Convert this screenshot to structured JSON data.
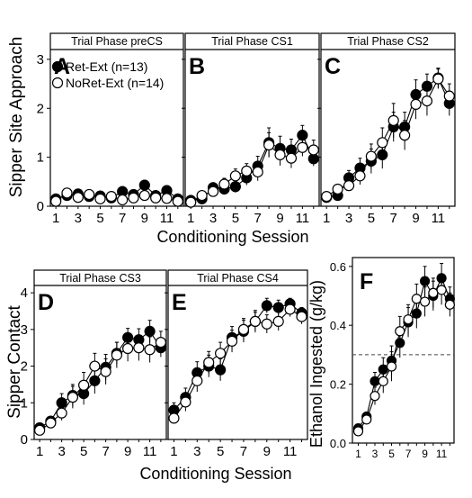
{
  "figure": {
    "row1_ylabel": "Sipper Site Approach",
    "row1_xlabel": "Conditioning Session",
    "row2_left_ylabel": "Sipper Contact",
    "row2_left_xlabel": "Conditioning Session",
    "ethanol_ylabel": "Ethanol Ingested (g/kg)"
  },
  "legend": {
    "ret": "Ret-Ext (n=13)",
    "noret": "NoRet-Ext (n=14)"
  },
  "colors": {
    "ret": "#000000",
    "noret": "#ffffff",
    "axis": "#000000",
    "strip": "#ffffff"
  },
  "chart_data": [
    {
      "id": "A",
      "type": "line",
      "letter": "A",
      "strip": "Trial Phase preCS",
      "ylim": [
        0,
        3.2
      ],
      "yticks": [
        0,
        1,
        2,
        3
      ],
      "xticks": [
        1,
        3,
        5,
        7,
        9,
        11
      ],
      "show_y_ticklabels": true,
      "legend": true,
      "x": [
        1,
        2,
        3,
        4,
        5,
        6,
        7,
        8,
        9,
        10,
        11,
        12
      ],
      "series": [
        {
          "name": "Ret-Ext (n=13)",
          "values": [
            0.15,
            0.22,
            0.25,
            0.2,
            0.21,
            0.17,
            0.3,
            0.24,
            0.43,
            0.22,
            0.32,
            0.15
          ],
          "err": [
            0.05,
            0.06,
            0.06,
            0.06,
            0.06,
            0.06,
            0.1,
            0.08,
            0.1,
            0.07,
            0.1,
            0.06
          ]
        },
        {
          "name": "NoRet-Ext (n=14)",
          "values": [
            0.1,
            0.27,
            0.18,
            0.24,
            0.15,
            0.2,
            0.13,
            0.17,
            0.22,
            0.17,
            0.16,
            0.1
          ],
          "err": [
            0.04,
            0.05,
            0.05,
            0.05,
            0.05,
            0.06,
            0.05,
            0.06,
            0.07,
            0.06,
            0.06,
            0.04
          ]
        }
      ]
    },
    {
      "id": "B",
      "type": "line",
      "letter": "B",
      "strip": "Trial Phase CS1",
      "ylim": [
        0,
        3.2
      ],
      "yticks": [
        0,
        1,
        2,
        3
      ],
      "xticks": [
        1,
        3,
        5,
        7,
        9,
        11
      ],
      "show_y_ticklabels": false,
      "legend": false,
      "x": [
        1,
        2,
        3,
        4,
        5,
        6,
        7,
        8,
        9,
        10,
        11,
        12
      ],
      "series": [
        {
          "name": "Ret-Ext (n=13)",
          "values": [
            0.12,
            0.15,
            0.38,
            0.35,
            0.4,
            0.58,
            0.82,
            1.3,
            1.18,
            1.15,
            1.45,
            0.97
          ],
          "err": [
            0.05,
            0.06,
            0.1,
            0.1,
            0.12,
            0.15,
            0.2,
            0.3,
            0.25,
            0.22,
            0.2,
            0.15
          ]
        },
        {
          "name": "NoRet-Ext (n=14)",
          "values": [
            0.08,
            0.22,
            0.3,
            0.45,
            0.62,
            0.72,
            0.7,
            1.25,
            1.05,
            0.98,
            1.2,
            1.15
          ],
          "err": [
            0.04,
            0.06,
            0.1,
            0.12,
            0.14,
            0.15,
            0.18,
            0.25,
            0.22,
            0.2,
            0.18,
            0.2
          ]
        }
      ]
    },
    {
      "id": "C",
      "type": "line",
      "letter": "C",
      "strip": "Trial Phase CS2",
      "ylim": [
        0,
        3.2
      ],
      "yticks": [
        0,
        1,
        2,
        3
      ],
      "xticks": [
        1,
        3,
        5,
        7,
        9,
        11
      ],
      "show_y_ticklabels": false,
      "legend": false,
      "x": [
        1,
        2,
        3,
        4,
        5,
        6,
        7,
        8,
        9,
        10,
        11,
        12
      ],
      "series": [
        {
          "name": "Ret-Ext (n=13)",
          "values": [
            0.18,
            0.22,
            0.58,
            0.78,
            0.92,
            1.05,
            1.62,
            1.62,
            2.28,
            2.45,
            2.62,
            2.1
          ],
          "err": [
            0.06,
            0.08,
            0.15,
            0.2,
            0.25,
            0.28,
            0.3,
            0.3,
            0.3,
            0.25,
            0.2,
            0.25
          ]
        },
        {
          "name": "NoRet-Ext (n=14)",
          "values": [
            0.2,
            0.35,
            0.42,
            0.62,
            1.02,
            1.3,
            1.75,
            1.45,
            2.08,
            2.15,
            2.6,
            2.25
          ],
          "err": [
            0.06,
            0.08,
            0.1,
            0.18,
            0.25,
            0.3,
            0.35,
            0.3,
            0.3,
            0.3,
            0.2,
            0.25
          ]
        }
      ]
    },
    {
      "id": "D",
      "type": "line",
      "letter": "D",
      "strip": "Trial Phase CS3",
      "ylim": [
        0,
        4.2
      ],
      "yticks": [
        0,
        1,
        2,
        3,
        4
      ],
      "xticks": [
        1,
        3,
        5,
        7,
        9,
        11
      ],
      "show_y_ticklabels": true,
      "legend": false,
      "x": [
        1,
        2,
        3,
        4,
        5,
        6,
        7,
        8,
        9,
        10,
        11,
        12
      ],
      "series": [
        {
          "name": "Ret-Ext (n=13)",
          "values": [
            0.32,
            0.5,
            1.0,
            1.2,
            1.25,
            1.6,
            1.97,
            2.35,
            2.78,
            2.72,
            2.95,
            2.5
          ],
          "err": [
            0.08,
            0.12,
            0.25,
            0.3,
            0.3,
            0.35,
            0.35,
            0.3,
            0.25,
            0.3,
            0.3,
            0.25
          ]
        },
        {
          "name": "NoRet-Ext (n=14)",
          "values": [
            0.25,
            0.45,
            0.72,
            1.15,
            1.48,
            2.0,
            1.85,
            2.3,
            2.48,
            2.5,
            2.45,
            2.65
          ],
          "err": [
            0.06,
            0.1,
            0.2,
            0.3,
            0.35,
            0.35,
            0.35,
            0.35,
            0.35,
            0.35,
            0.35,
            0.3
          ]
        }
      ]
    },
    {
      "id": "E",
      "type": "line",
      "letter": "E",
      "strip": "Trial Phase CS4",
      "ylim": [
        0,
        4.2
      ],
      "yticks": [
        0,
        1,
        2,
        3,
        4
      ],
      "xticks": [
        1,
        3,
        5,
        7,
        9,
        11
      ],
      "show_y_ticklabels": false,
      "legend": false,
      "x": [
        1,
        2,
        3,
        4,
        5,
        6,
        7,
        8,
        9,
        10,
        11,
        12
      ],
      "series": [
        {
          "name": "Ret-Ext (n=13)",
          "values": [
            0.8,
            1.15,
            1.82,
            2.0,
            1.9,
            2.78,
            2.95,
            3.22,
            3.65,
            3.6,
            3.7,
            3.45
          ],
          "err": [
            0.2,
            0.25,
            0.3,
            0.3,
            0.3,
            0.3,
            0.3,
            0.25,
            0.2,
            0.2,
            0.15,
            0.15
          ]
        },
        {
          "name": "NoRet-Ext (n=14)",
          "values": [
            0.58,
            1.02,
            1.6,
            2.1,
            2.35,
            2.68,
            3.0,
            3.22,
            3.15,
            3.22,
            3.55,
            3.35
          ],
          "err": [
            0.15,
            0.25,
            0.3,
            0.3,
            0.3,
            0.3,
            0.3,
            0.3,
            0.25,
            0.25,
            0.2,
            0.2
          ]
        }
      ]
    },
    {
      "id": "F",
      "type": "line",
      "letter": "F",
      "strip": "",
      "ylim": [
        0,
        0.63
      ],
      "yticks": [
        0.0,
        0.2,
        0.4,
        0.6
      ],
      "ytick_labels": [
        "0.0",
        "0.2",
        "0.4",
        "0.6"
      ],
      "xticks": [
        1,
        3,
        5,
        7,
        9,
        11
      ],
      "show_y_ticklabels": true,
      "legend": false,
      "reference_line": 0.3,
      "x": [
        1,
        2,
        3,
        4,
        5,
        6,
        7,
        8,
        9,
        10,
        11,
        12
      ],
      "series": [
        {
          "name": "Ret-Ext (n=13)",
          "values": [
            0.05,
            0.09,
            0.21,
            0.25,
            0.28,
            0.34,
            0.41,
            0.44,
            0.55,
            0.5,
            0.56,
            0.49
          ],
          "err": [
            0.01,
            0.015,
            0.03,
            0.04,
            0.05,
            0.05,
            0.05,
            0.05,
            0.05,
            0.05,
            0.05,
            0.04
          ]
        },
        {
          "name": "NoRet-Ext (n=14)",
          "values": [
            0.04,
            0.08,
            0.16,
            0.21,
            0.26,
            0.38,
            0.42,
            0.49,
            0.48,
            0.51,
            0.52,
            0.47
          ],
          "err": [
            0.01,
            0.015,
            0.03,
            0.04,
            0.05,
            0.05,
            0.05,
            0.05,
            0.05,
            0.05,
            0.05,
            0.04
          ]
        }
      ]
    }
  ]
}
